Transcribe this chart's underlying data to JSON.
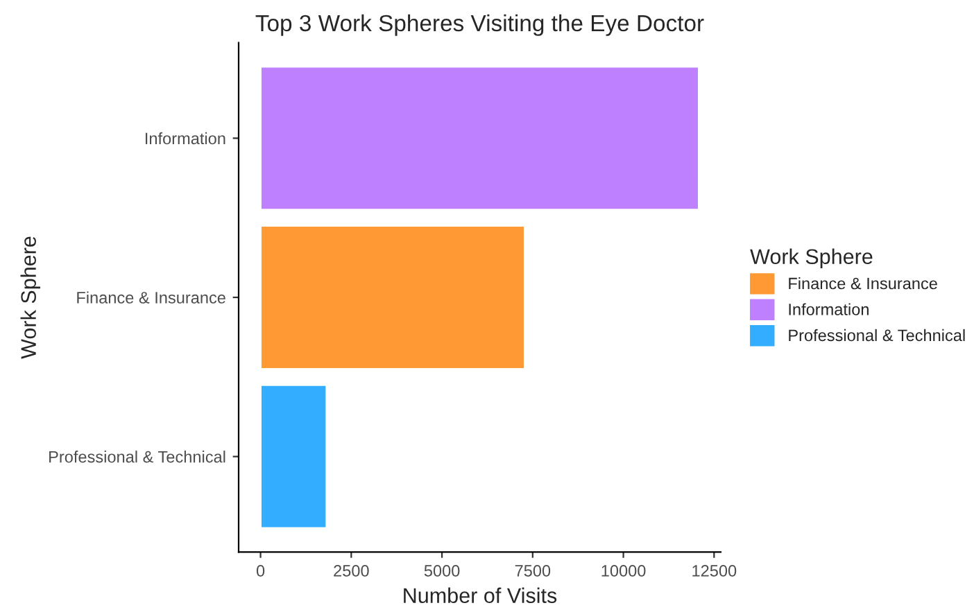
{
  "chart_data": {
    "type": "bar",
    "orientation": "horizontal",
    "title": "Top 3 Work Spheres Visiting the Eye Doctor",
    "xlabel": "Number of Visits",
    "ylabel": "Work Sphere",
    "legend_title": "Work Sphere",
    "legend": "right",
    "grid": false,
    "categories": [
      "Information",
      "Finance & Insurance",
      "Professional & Technical"
    ],
    "series": [
      {
        "name": "Finance & Insurance",
        "color": "#ff9933",
        "values": [
          null,
          7280,
          null
        ]
      },
      {
        "name": "Information",
        "color": "#bf80ff",
        "values": [
          12080,
          null,
          null
        ]
      },
      {
        "name": "Professional & Technical",
        "color": "#33adff",
        "values": [
          null,
          null,
          1820
        ]
      }
    ],
    "xlim": [
      -604,
      12684
    ],
    "xticks": [
      0,
      2500,
      5000,
      7500,
      10000,
      12500
    ]
  }
}
